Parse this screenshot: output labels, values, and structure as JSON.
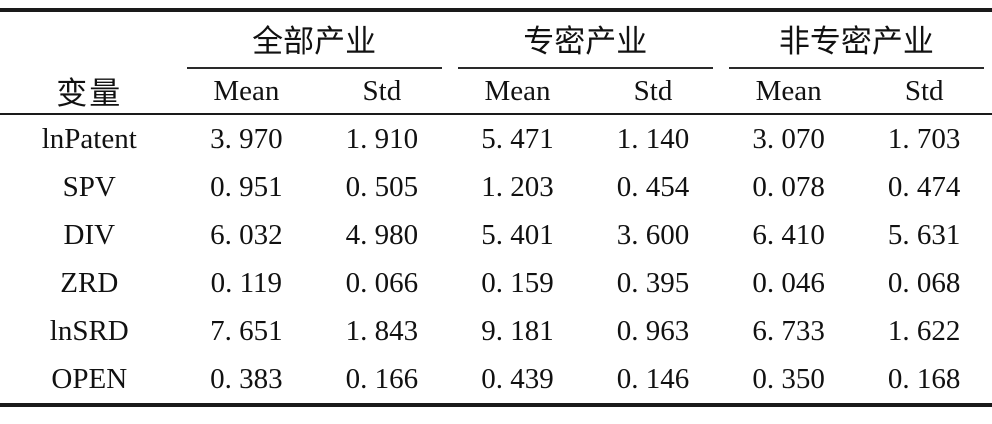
{
  "colors": {
    "rule": "#1a1a1a",
    "text": "#111111",
    "background": "#ffffff"
  },
  "table": {
    "variable_header": "变量",
    "groups": [
      {
        "label": "全部产业",
        "subs": [
          "Mean",
          "Std"
        ]
      },
      {
        "label": "专密产业",
        "subs": [
          "Mean",
          "Std"
        ]
      },
      {
        "label": "非专密产业",
        "subs": [
          "Mean",
          "Std"
        ]
      }
    ],
    "rows": [
      {
        "variable": "lnPatent",
        "values": [
          "3. 970",
          "1. 910",
          "5. 471",
          "1. 140",
          "3. 070",
          "1. 703"
        ]
      },
      {
        "variable": "SPV",
        "values": [
          "0. 951",
          "0. 505",
          "1. 203",
          "0. 454",
          "0. 078",
          "0. 474"
        ]
      },
      {
        "variable": "DIV",
        "values": [
          "6. 032",
          "4. 980",
          "5. 401",
          "3. 600",
          "6. 410",
          "5. 631"
        ]
      },
      {
        "variable": "ZRD",
        "values": [
          "0. 119",
          "0. 066",
          "0. 159",
          "0. 395",
          "0. 046",
          "0. 068"
        ]
      },
      {
        "variable": "lnSRD",
        "values": [
          "7. 651",
          "1. 843",
          "9. 181",
          "0. 963",
          "6. 733",
          "1. 622"
        ]
      },
      {
        "variable": "OPEN",
        "values": [
          "0. 383",
          "0. 166",
          "0. 439",
          "0. 146",
          "0. 350",
          "0. 168"
        ]
      }
    ]
  },
  "chart_data": {
    "type": "table",
    "columns": [
      "变量",
      "全部产业 Mean",
      "全部产业 Std",
      "专密产业 Mean",
      "专密产业 Std",
      "非专密产业 Mean",
      "非专密产业 Std"
    ],
    "rows": [
      [
        "lnPatent",
        3.97,
        1.91,
        5.471,
        1.14,
        3.07,
        1.703
      ],
      [
        "SPV",
        0.951,
        0.505,
        1.203,
        0.454,
        0.078,
        0.474
      ],
      [
        "DIV",
        6.032,
        4.98,
        5.401,
        3.6,
        6.41,
        5.631
      ],
      [
        "ZRD",
        0.119,
        0.066,
        0.159,
        0.395,
        0.046,
        0.068
      ],
      [
        "lnSRD",
        7.651,
        1.843,
        9.181,
        0.963,
        6.733,
        1.622
      ],
      [
        "OPEN",
        0.383,
        0.166,
        0.439,
        0.146,
        0.35,
        0.168
      ]
    ]
  }
}
